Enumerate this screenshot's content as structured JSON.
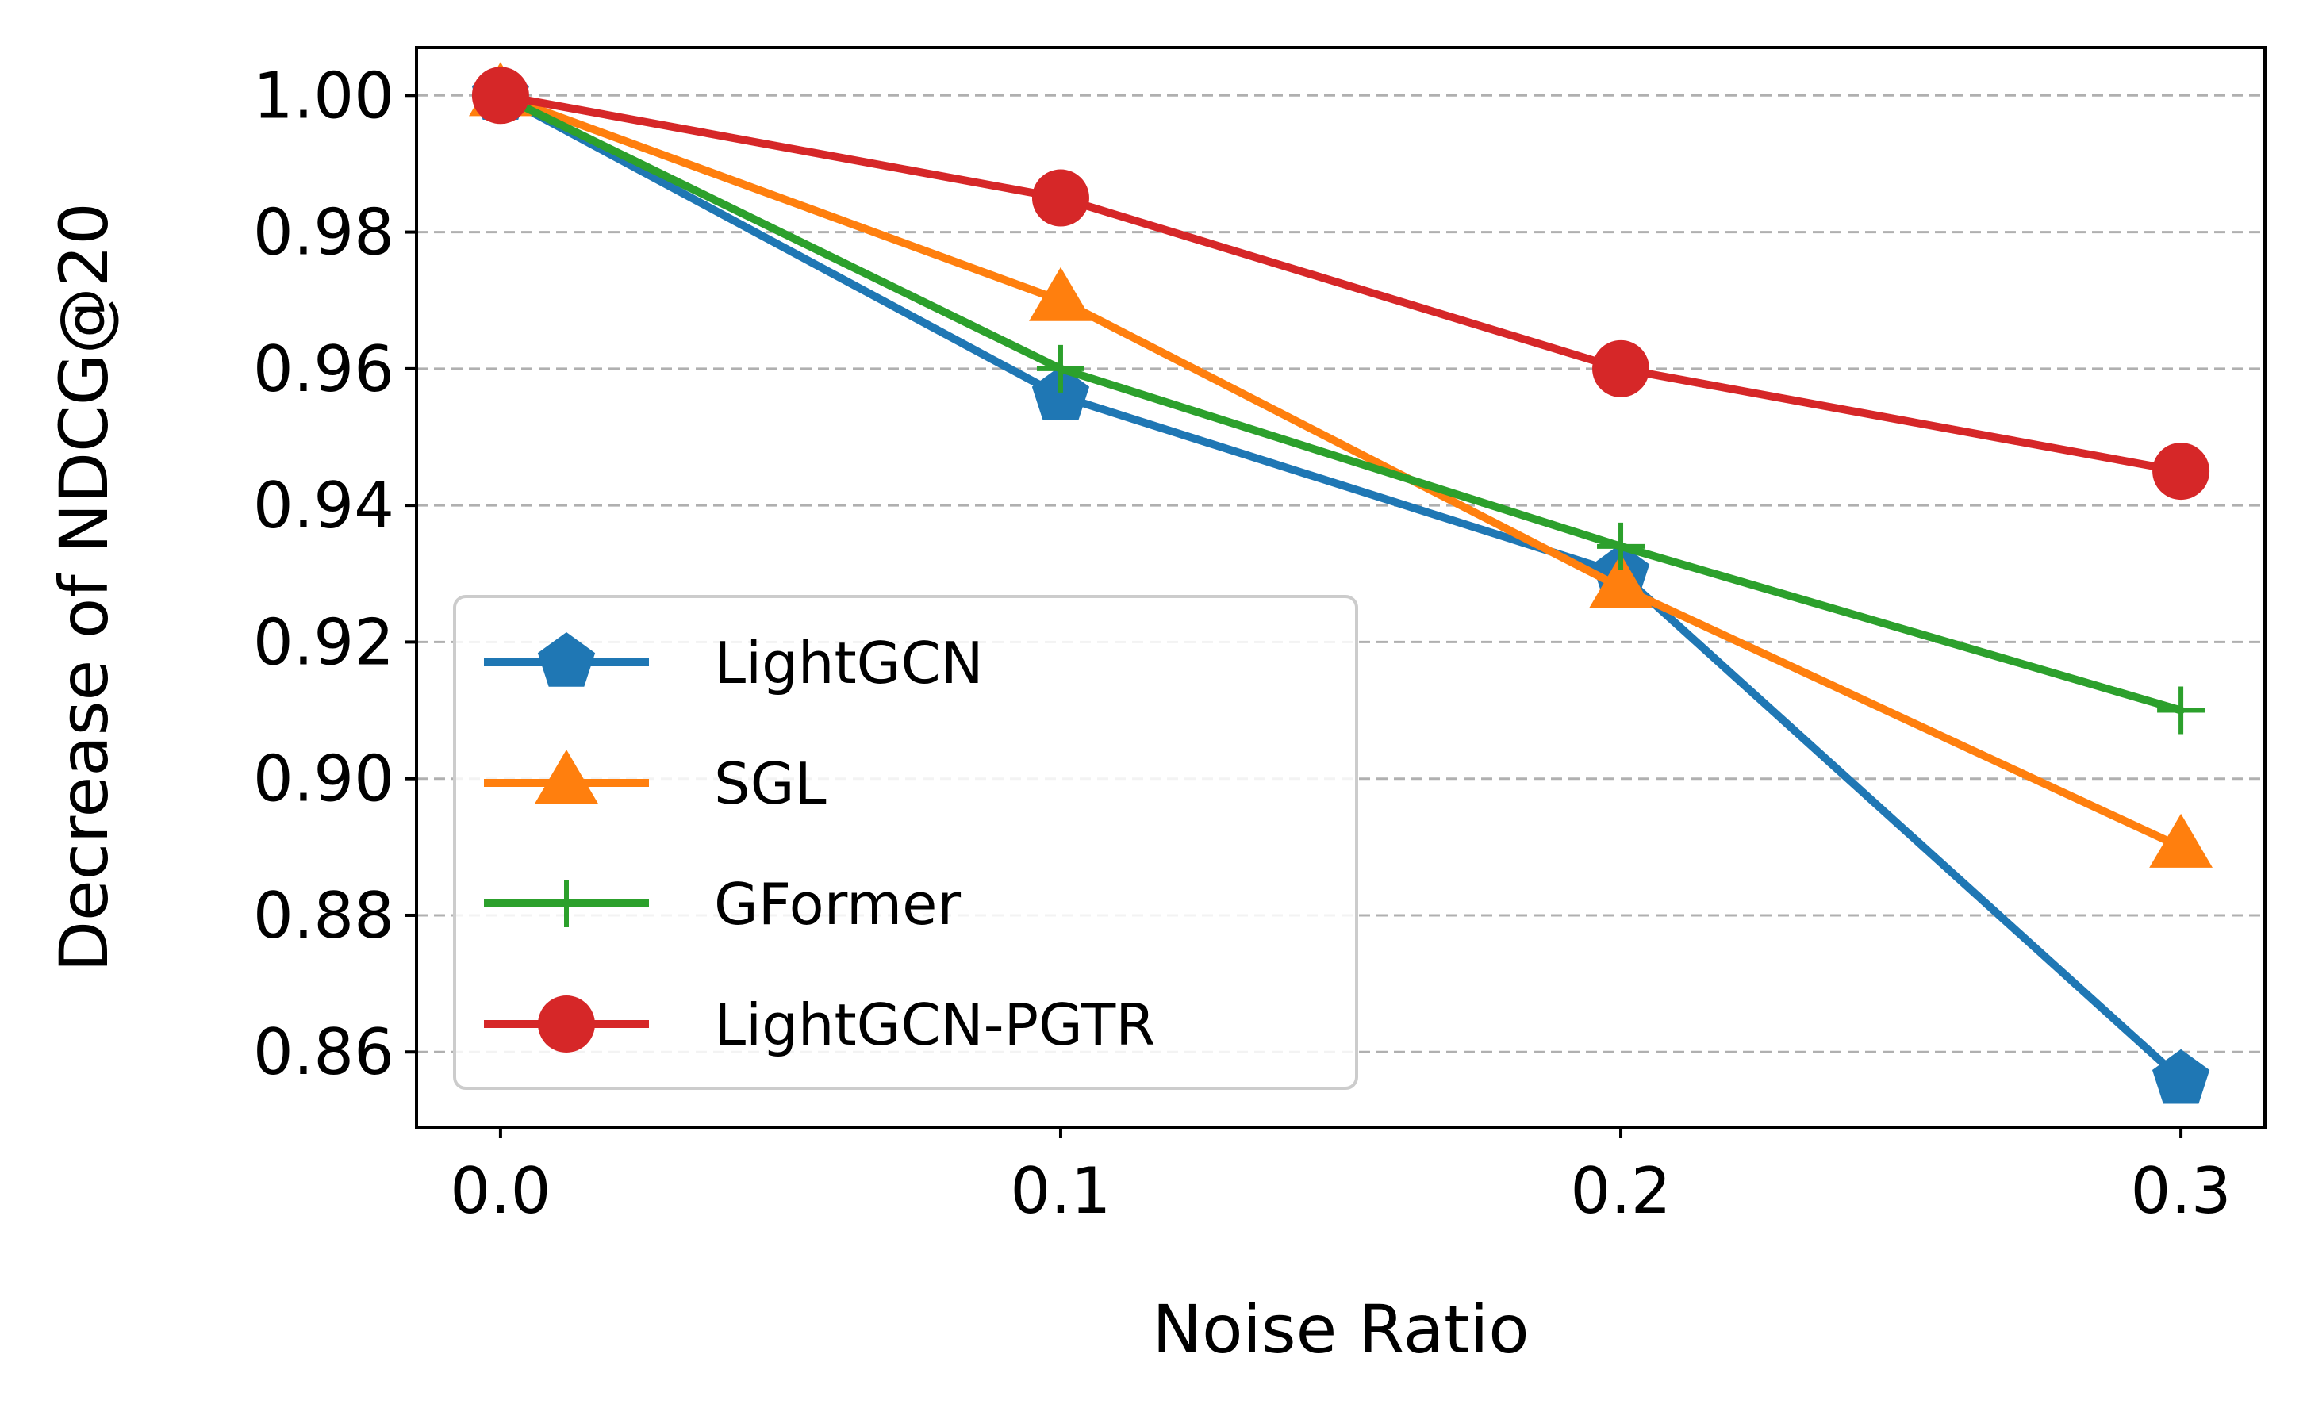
{
  "chart_data": {
    "type": "line",
    "title": "",
    "xlabel": "Noise Ratio",
    "ylabel": "Decrease of NDCG@20",
    "x": [
      0.0,
      0.1,
      0.2,
      0.3
    ],
    "x_ticks": [
      "0.0",
      "0.1",
      "0.2",
      "0.3"
    ],
    "y_ticks": [
      "0.86",
      "0.88",
      "0.90",
      "0.92",
      "0.94",
      "0.96",
      "0.98",
      "1.00"
    ],
    "y_tick_values": [
      0.86,
      0.88,
      0.9,
      0.92,
      0.94,
      0.96,
      0.98,
      1.0
    ],
    "xlim": [
      -0.015,
      0.315
    ],
    "ylim": [
      0.849,
      1.007
    ],
    "grid": "horizontal-dashed",
    "legend_position": "lower-left",
    "series": [
      {
        "name": "LightGCN",
        "color": "#1f77b4",
        "marker": "pentagon",
        "values": [
          1.0,
          0.956,
          0.93,
          0.856
        ]
      },
      {
        "name": "SGL",
        "color": "#ff7f0e",
        "marker": "triangle",
        "values": [
          1.0,
          0.97,
          0.928,
          0.89
        ]
      },
      {
        "name": "GFormer",
        "color": "#2ca02c",
        "marker": "plus",
        "values": [
          1.0,
          0.96,
          0.934,
          0.91
        ]
      },
      {
        "name": "LightGCN-PGTR",
        "color": "#d62728",
        "marker": "circle",
        "values": [
          1.0,
          0.985,
          0.96,
          0.945
        ]
      }
    ]
  }
}
